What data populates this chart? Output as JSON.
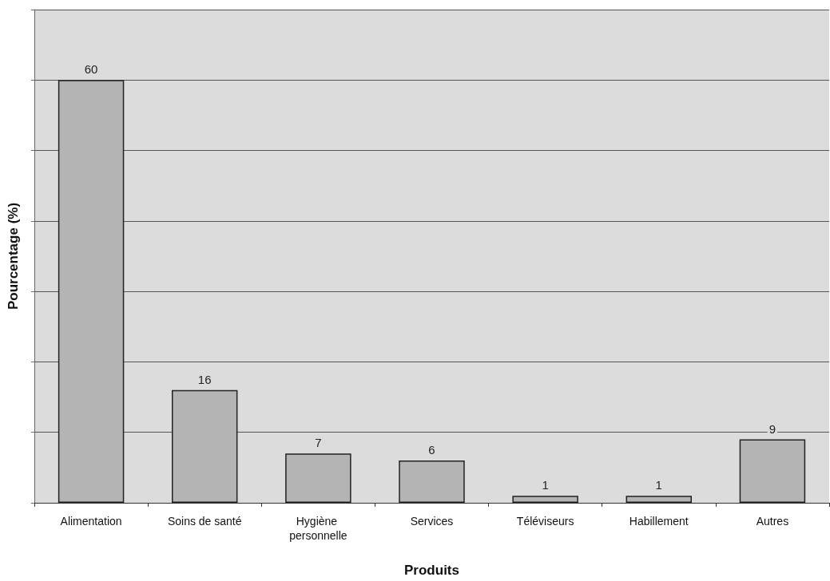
{
  "chart_data": {
    "type": "bar",
    "xlabel": "Produits",
    "ylabel": "Pourcentage (%)",
    "categories": [
      "Alimentation",
      "Soins de santé",
      "Hygiène personnelle",
      "Services",
      "Téléviseurs",
      "Habillement",
      "Autres"
    ],
    "values": [
      60,
      16,
      7,
      6,
      1,
      1,
      9
    ],
    "color": "#b4b4b4",
    "data_labels": true,
    "ylim": [
      0,
      70
    ],
    "yticks": [
      {
        "value": 0,
        "label": null
      },
      {
        "value": 10,
        "label": null
      },
      {
        "value": 20,
        "label": null
      },
      {
        "value": 30,
        "label": null
      },
      {
        "value": 40,
        "label": null
      },
      {
        "value": 50,
        "label": null
      },
      {
        "value": 60,
        "label": null
      },
      {
        "value": 70,
        "label": null
      }
    ],
    "tick_labels": "x",
    "grid": "y"
  }
}
